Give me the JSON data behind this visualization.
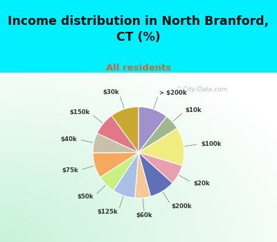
{
  "title": "Income distribution in North Branford,\nCT (%)",
  "subtitle": "All residents",
  "slices": [
    {
      "label": "> $200k",
      "value": 10.5,
      "color": "#a090cc"
    },
    {
      "label": "$10k",
      "value": 5.5,
      "color": "#a0b890"
    },
    {
      "label": "$100k",
      "value": 13.5,
      "color": "#f0ed80"
    },
    {
      "label": "$20k",
      "value": 7.0,
      "color": "#e8a0b0"
    },
    {
      "label": "$200k",
      "value": 9.0,
      "color": "#6070b8"
    },
    {
      "label": "$60k",
      "value": 5.5,
      "color": "#f5c898"
    },
    {
      "label": "$125k",
      "value": 8.0,
      "color": "#a8c0e8"
    },
    {
      "label": "$50k",
      "value": 6.5,
      "color": "#c8f080"
    },
    {
      "label": "$75k",
      "value": 9.0,
      "color": "#f5a860"
    },
    {
      "label": "$40k",
      "value": 7.0,
      "color": "#c8c0a8"
    },
    {
      "label": "$150k",
      "value": 8.0,
      "color": "#e07888"
    },
    {
      "label": "$30k",
      "value": 10.0,
      "color": "#c8a830"
    }
  ],
  "bg_cyan": "#00f0ff",
  "title_color": "#111111",
  "subtitle_color": "#cc6633",
  "watermark": "City-Data.com",
  "label_color": "#333333"
}
